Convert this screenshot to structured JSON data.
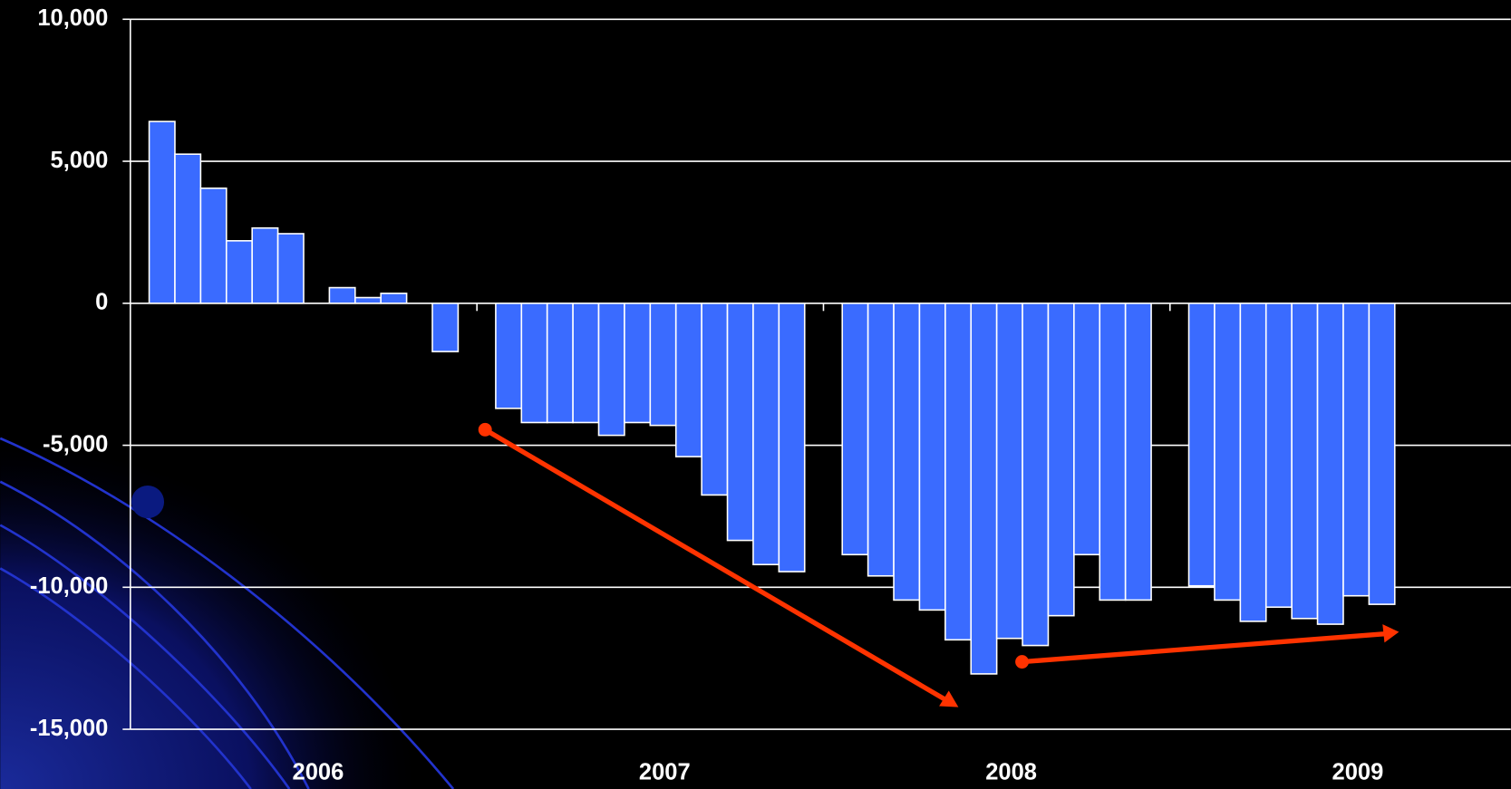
{
  "chart_data": {
    "type": "bar",
    "color": "#3a6bff",
    "categories": [
      "2006",
      "2007",
      "2008",
      "2009"
    ],
    "values": [
      [
        6400,
        5250,
        4050,
        2200,
        2650,
        2450,
        null,
        550,
        200,
        350,
        null,
        -1700
      ],
      [
        -3700,
        -4200,
        -4200,
        -4200,
        -4650,
        -4200,
        -4300,
        -5400,
        -6750,
        -8350,
        -9200,
        -9450
      ],
      [
        -8850,
        -9600,
        -10450,
        -10800,
        -11850,
        -13050,
        -11800,
        -12050,
        -11000,
        -8850,
        -10450,
        -10450
      ],
      [
        -9950,
        -10450,
        -11200,
        -10700,
        -11100,
        -11300,
        -10300,
        -10600,
        null,
        null,
        null,
        null
      ]
    ],
    "ylim": [
      -15000,
      10000
    ],
    "yticks": [
      {
        "value": 10000,
        "label": "10,000"
      },
      {
        "value": 5000,
        "label": "5,000"
      },
      0,
      {
        "value": -5000,
        "label": "-5,000"
      },
      {
        "value": -10000,
        "label": "-10,000"
      },
      {
        "value": -15000,
        "label": "-15,000"
      }
    ],
    "grid": true
  }
}
